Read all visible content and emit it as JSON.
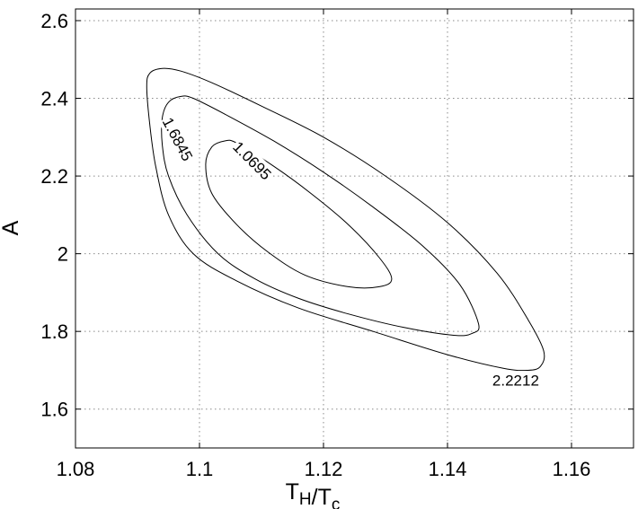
{
  "chart_data": {
    "type": "contour",
    "title": "",
    "xlabel": "T_H/T_c",
    "ylabel": "A",
    "xlim": [
      1.08,
      1.17
    ],
    "ylim": [
      1.5,
      2.63
    ],
    "grid": true,
    "x_ticks": [
      1.08,
      1.1,
      1.12,
      1.14,
      1.16
    ],
    "x_tick_labels": [
      "1.08",
      "1.1",
      "1.12",
      "1.14",
      "1.16"
    ],
    "y_ticks": [
      1.6,
      1.8,
      2.0,
      2.2,
      2.4,
      2.6
    ],
    "y_tick_labels": [
      "1.6",
      "1.8",
      "2",
      "2.2",
      "2.4",
      "2.6"
    ],
    "contours": [
      {
        "level": "1.0695",
        "points": [
          [
            1.101,
            2.23
          ],
          [
            1.102,
            2.275
          ],
          [
            1.104,
            2.29
          ],
          [
            1.106,
            2.285
          ],
          [
            1.112,
            2.225
          ],
          [
            1.118,
            2.155
          ],
          [
            1.124,
            2.075
          ],
          [
            1.129,
            1.99
          ],
          [
            1.131,
            1.935
          ],
          [
            1.129,
            1.915
          ],
          [
            1.124,
            1.915
          ],
          [
            1.117,
            1.945
          ],
          [
            1.111,
            2.005
          ],
          [
            1.106,
            2.075
          ],
          [
            1.102,
            2.155
          ],
          [
            1.101,
            2.23
          ]
        ]
      },
      {
        "level": "1.6845",
        "points": [
          [
            1.094,
            2.35
          ],
          [
            1.095,
            2.39
          ],
          [
            1.097,
            2.405
          ],
          [
            1.099,
            2.4
          ],
          [
            1.104,
            2.36
          ],
          [
            1.112,
            2.29
          ],
          [
            1.12,
            2.21
          ],
          [
            1.128,
            2.12
          ],
          [
            1.136,
            2.02
          ],
          [
            1.142,
            1.92
          ],
          [
            1.145,
            1.82
          ],
          [
            1.144,
            1.795
          ],
          [
            1.141,
            1.79
          ],
          [
            1.133,
            1.81
          ],
          [
            1.124,
            1.845
          ],
          [
            1.116,
            1.885
          ],
          [
            1.109,
            1.935
          ],
          [
            1.103,
            2.0
          ],
          [
            1.098,
            2.1
          ],
          [
            1.095,
            2.2
          ],
          [
            1.094,
            2.28
          ],
          [
            1.094,
            2.35
          ]
        ]
      },
      {
        "level": "2.2212",
        "points": [
          [
            1.0915,
            2.43
          ],
          [
            1.092,
            2.465
          ],
          [
            1.094,
            2.477
          ],
          [
            1.097,
            2.47
          ],
          [
            1.102,
            2.44
          ],
          [
            1.11,
            2.38
          ],
          [
            1.12,
            2.3
          ],
          [
            1.13,
            2.2
          ],
          [
            1.14,
            2.08
          ],
          [
            1.148,
            1.95
          ],
          [
            1.153,
            1.83
          ],
          [
            1.1555,
            1.75
          ],
          [
            1.155,
            1.71
          ],
          [
            1.153,
            1.7
          ],
          [
            1.149,
            1.705
          ],
          [
            1.14,
            1.74
          ],
          [
            1.128,
            1.8
          ],
          [
            1.116,
            1.86
          ],
          [
            1.106,
            1.93
          ],
          [
            1.099,
            2.0
          ],
          [
            1.095,
            2.1
          ],
          [
            1.093,
            2.22
          ],
          [
            1.092,
            2.33
          ],
          [
            1.0915,
            2.43
          ]
        ]
      }
    ],
    "contour_labels": [
      {
        "text": "1.0695",
        "x": 1.1085,
        "y": 2.24,
        "angle": 45
      },
      {
        "text": "1.6845",
        "x": 1.0965,
        "y": 2.295,
        "angle": 62
      },
      {
        "text": "2.2212",
        "x": 1.151,
        "y": 1.675,
        "angle": 0
      }
    ]
  }
}
